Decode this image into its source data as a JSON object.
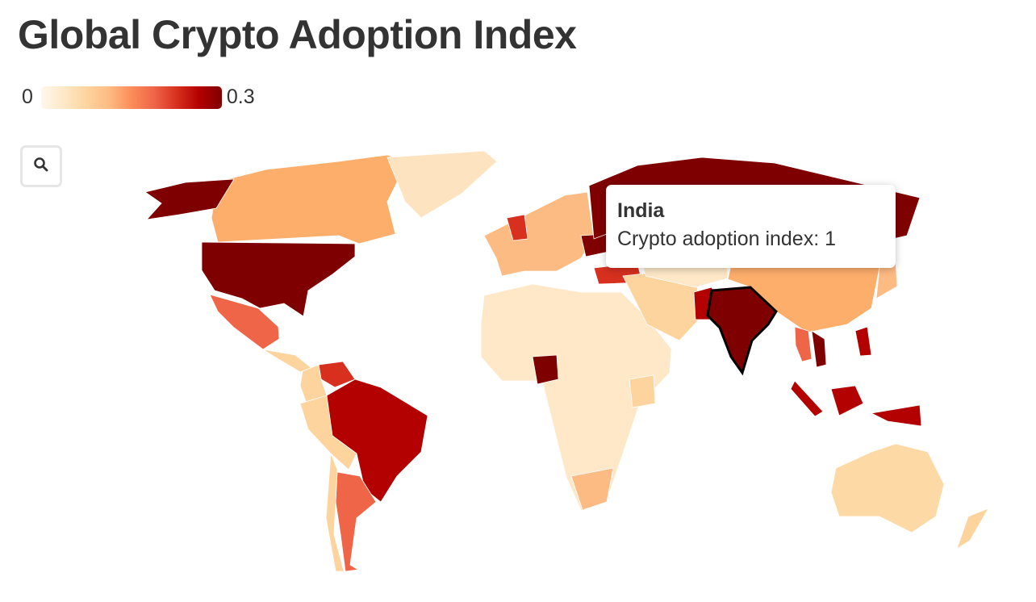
{
  "title": "Global Crypto Adoption Index",
  "legend": {
    "min_label": "0",
    "max_label": "0.3",
    "scale": [
      0,
      0.3
    ],
    "colors": [
      "#fff7ec",
      "#fee8c8",
      "#fdd49e",
      "#fdbb84",
      "#fc8d59",
      "#ef6548",
      "#d7301f",
      "#b30000",
      "#7f0000"
    ]
  },
  "zoom_button": {
    "icon": "search-icon"
  },
  "tooltip": {
    "country": "India",
    "line": "Crypto adoption index: 1"
  },
  "map": {
    "highlighted": "India",
    "countries": [
      {
        "name": "Canada",
        "color": "#fdae6b"
      },
      {
        "name": "Alaska",
        "color": "#7f0000"
      },
      {
        "name": "United States",
        "color": "#7f0000"
      },
      {
        "name": "Greenland",
        "color": "#fee3c0"
      },
      {
        "name": "Mexico",
        "color": "#ef6548"
      },
      {
        "name": "Central America",
        "color": "#fdd49e"
      },
      {
        "name": "Venezuela",
        "color": "#d7301f"
      },
      {
        "name": "Colombia",
        "color": "#fdd49e"
      },
      {
        "name": "Brazil",
        "color": "#b30000"
      },
      {
        "name": "Peru",
        "color": "#fdd49e"
      },
      {
        "name": "Argentina",
        "color": "#ef6548"
      },
      {
        "name": "Chile",
        "color": "#fdd49e"
      },
      {
        "name": "Europe",
        "color": "#fdbb84"
      },
      {
        "name": "United Kingdom",
        "color": "#d7301f"
      },
      {
        "name": "Ukraine",
        "color": "#7f0000"
      },
      {
        "name": "Russia",
        "color": "#7f0000"
      },
      {
        "name": "Turkey",
        "color": "#d7301f"
      },
      {
        "name": "Africa",
        "color": "#fee8c8"
      },
      {
        "name": "Nigeria",
        "color": "#7f0000"
      },
      {
        "name": "Kenya",
        "color": "#fdd49e"
      },
      {
        "name": "South Africa",
        "color": "#fdbb84"
      },
      {
        "name": "Middle East",
        "color": "#fdd49e"
      },
      {
        "name": "Central Asia",
        "color": "#fee8c8"
      },
      {
        "name": "Pakistan",
        "color": "#b30000"
      },
      {
        "name": "India",
        "color": "#7f0000"
      },
      {
        "name": "China",
        "color": "#fdae6b"
      },
      {
        "name": "Thailand",
        "color": "#ef6548"
      },
      {
        "name": "Vietnam",
        "color": "#7f0000"
      },
      {
        "name": "Philippines",
        "color": "#b30000"
      },
      {
        "name": "Indonesia",
        "color": "#b30000"
      },
      {
        "name": "Japan",
        "color": "#fdbb84"
      },
      {
        "name": "Australia",
        "color": "#fdd9a6"
      },
      {
        "name": "New Zealand",
        "color": "#fdd49e"
      }
    ]
  }
}
